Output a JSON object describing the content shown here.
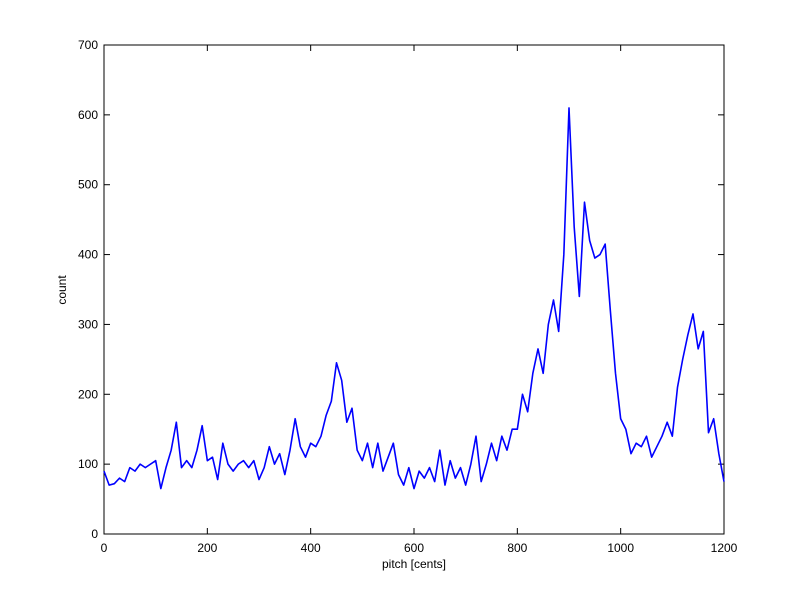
{
  "chart_data": {
    "type": "line",
    "xlabel": "pitch [cents]",
    "ylabel": "count",
    "x": [
      0,
      10,
      20,
      30,
      40,
      50,
      60,
      70,
      80,
      90,
      100,
      110,
      120,
      130,
      140,
      150,
      160,
      170,
      180,
      190,
      200,
      210,
      220,
      230,
      240,
      250,
      260,
      270,
      280,
      290,
      300,
      310,
      320,
      330,
      340,
      350,
      360,
      370,
      380,
      390,
      400,
      410,
      420,
      430,
      440,
      450,
      460,
      470,
      480,
      490,
      500,
      510,
      520,
      530,
      540,
      550,
      560,
      570,
      580,
      590,
      600,
      610,
      620,
      630,
      640,
      650,
      660,
      670,
      680,
      690,
      700,
      710,
      720,
      730,
      740,
      750,
      760,
      770,
      780,
      790,
      800,
      810,
      820,
      830,
      840,
      850,
      860,
      870,
      880,
      890,
      900,
      910,
      920,
      930,
      940,
      950,
      960,
      970,
      980,
      990,
      1000,
      1010,
      1020,
      1030,
      1040,
      1050,
      1060,
      1070,
      1080,
      1090,
      1100,
      1110,
      1120,
      1130,
      1140,
      1150,
      1160,
      1170,
      1180,
      1190,
      1200
    ],
    "series": [
      {
        "color": "#0000ff",
        "values": [
          90,
          70,
          72,
          80,
          75,
          95,
          90,
          100,
          95,
          100,
          105,
          65,
          95,
          120,
          160,
          95,
          105,
          95,
          120,
          155,
          105,
          110,
          78,
          130,
          100,
          90,
          100,
          105,
          95,
          105,
          78,
          95,
          125,
          100,
          115,
          85,
          120,
          165,
          125,
          110,
          130,
          125,
          140,
          170,
          190,
          245,
          220,
          160,
          180,
          120,
          105,
          130,
          95,
          130,
          90,
          110,
          130,
          85,
          70,
          95,
          65,
          90,
          80,
          95,
          75,
          120,
          70,
          105,
          80,
          95,
          70,
          100,
          140,
          75,
          100,
          130,
          105,
          140,
          120,
          150,
          150,
          200,
          175,
          230,
          265,
          230,
          300,
          335,
          290,
          400,
          610,
          440,
          340,
          475,
          420,
          395,
          400,
          415,
          320,
          230,
          165,
          150,
          115,
          130,
          125,
          140,
          110,
          125,
          140,
          160,
          140,
          210,
          250,
          285,
          315,
          265,
          290,
          145,
          165,
          115,
          75
        ]
      }
    ],
    "xlim": [
      0,
      1200
    ],
    "xticks": [
      0,
      200,
      400,
      600,
      800,
      1000,
      1200
    ],
    "ylim": [
      0,
      700
    ],
    "yticks": [
      0,
      100,
      200,
      300,
      400,
      500,
      600,
      700
    ]
  }
}
